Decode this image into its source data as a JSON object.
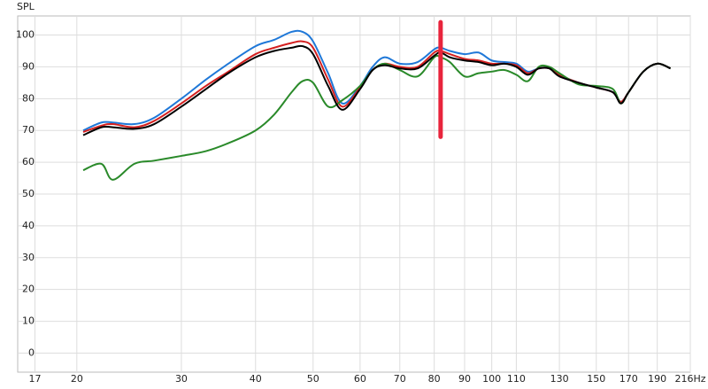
{
  "chart_data": {
    "type": "line",
    "y_label": "SPL",
    "log_x": true,
    "grid": true,
    "x": [
      20.5,
      22,
      23,
      25,
      27,
      30,
      33,
      36,
      40,
      43,
      46,
      48,
      50,
      53,
      56,
      60,
      63,
      66,
      70,
      75,
      80,
      82,
      85,
      90,
      95,
      100,
      105,
      110,
      115,
      120,
      125,
      130,
      140,
      150,
      160,
      165,
      170,
      180,
      190,
      200
    ],
    "series": [
      {
        "name": "blue",
        "color": "#1f78d8",
        "values": [
          70,
          72.5,
          72.5,
          72,
          74,
          80,
          86,
          91,
          96.5,
          98.5,
          101,
          101,
          98,
          88,
          78.5,
          84,
          90,
          93,
          91,
          91.5,
          95.5,
          96,
          95,
          94,
          94.5,
          92,
          91.5,
          91,
          88.5,
          89.5,
          89.5,
          87.5,
          85,
          83.5,
          82,
          79,
          82,
          88.5,
          91,
          89.5
        ]
      },
      {
        "name": "red",
        "color": "#d42020",
        "values": [
          69.5,
          71.5,
          72,
          71,
          73,
          78.5,
          84,
          88.5,
          94,
          96,
          97.5,
          98,
          96,
          86,
          77.5,
          83.5,
          89,
          91,
          90,
          90,
          94.5,
          95,
          94,
          92.5,
          92,
          91,
          91,
          90.5,
          88,
          89.5,
          89.5,
          87.5,
          85,
          83.5,
          82,
          79,
          82,
          88.5,
          91,
          89.5
        ]
      },
      {
        "name": "green",
        "color": "#2a8a2a",
        "values": [
          57.5,
          59.5,
          54.5,
          59.5,
          60.5,
          62,
          63.5,
          66,
          70,
          75,
          82,
          85.5,
          85,
          77.5,
          79.5,
          84,
          89,
          91,
          89,
          87,
          93,
          93,
          91.5,
          87,
          88,
          88.5,
          89,
          87.5,
          85.5,
          90,
          90,
          88,
          84.5,
          84,
          83,
          78.5,
          82,
          88.5,
          91,
          89.5
        ]
      },
      {
        "name": "black",
        "color": "#000000",
        "values": [
          68.5,
          71,
          71,
          70.5,
          72,
          77.5,
          83,
          88,
          93,
          95,
          96,
          96.5,
          94,
          84,
          76.5,
          83,
          89,
          90.5,
          89.5,
          89.5,
          93.5,
          94.5,
          93,
          92,
          91.5,
          90.5,
          91,
          90,
          87.5,
          89.5,
          89.5,
          87,
          85,
          83.5,
          82,
          78.5,
          82,
          88.5,
          91,
          89.5
        ]
      }
    ],
    "marker": {
      "x": 82,
      "y": [
        68,
        104
      ],
      "color": "#e8243c"
    },
    "xlim": [
      15.9,
      216
    ],
    "ylim": [
      -6,
      106
    ],
    "xticks": [
      17,
      20,
      30,
      40,
      50,
      60,
      70,
      80,
      90,
      100,
      110,
      130,
      150,
      170,
      190,
      {
        "value": 216,
        "label": "216Hz"
      }
    ],
    "yticks": [
      0,
      10,
      20,
      30,
      40,
      50,
      60,
      70,
      80,
      90,
      100
    ]
  }
}
